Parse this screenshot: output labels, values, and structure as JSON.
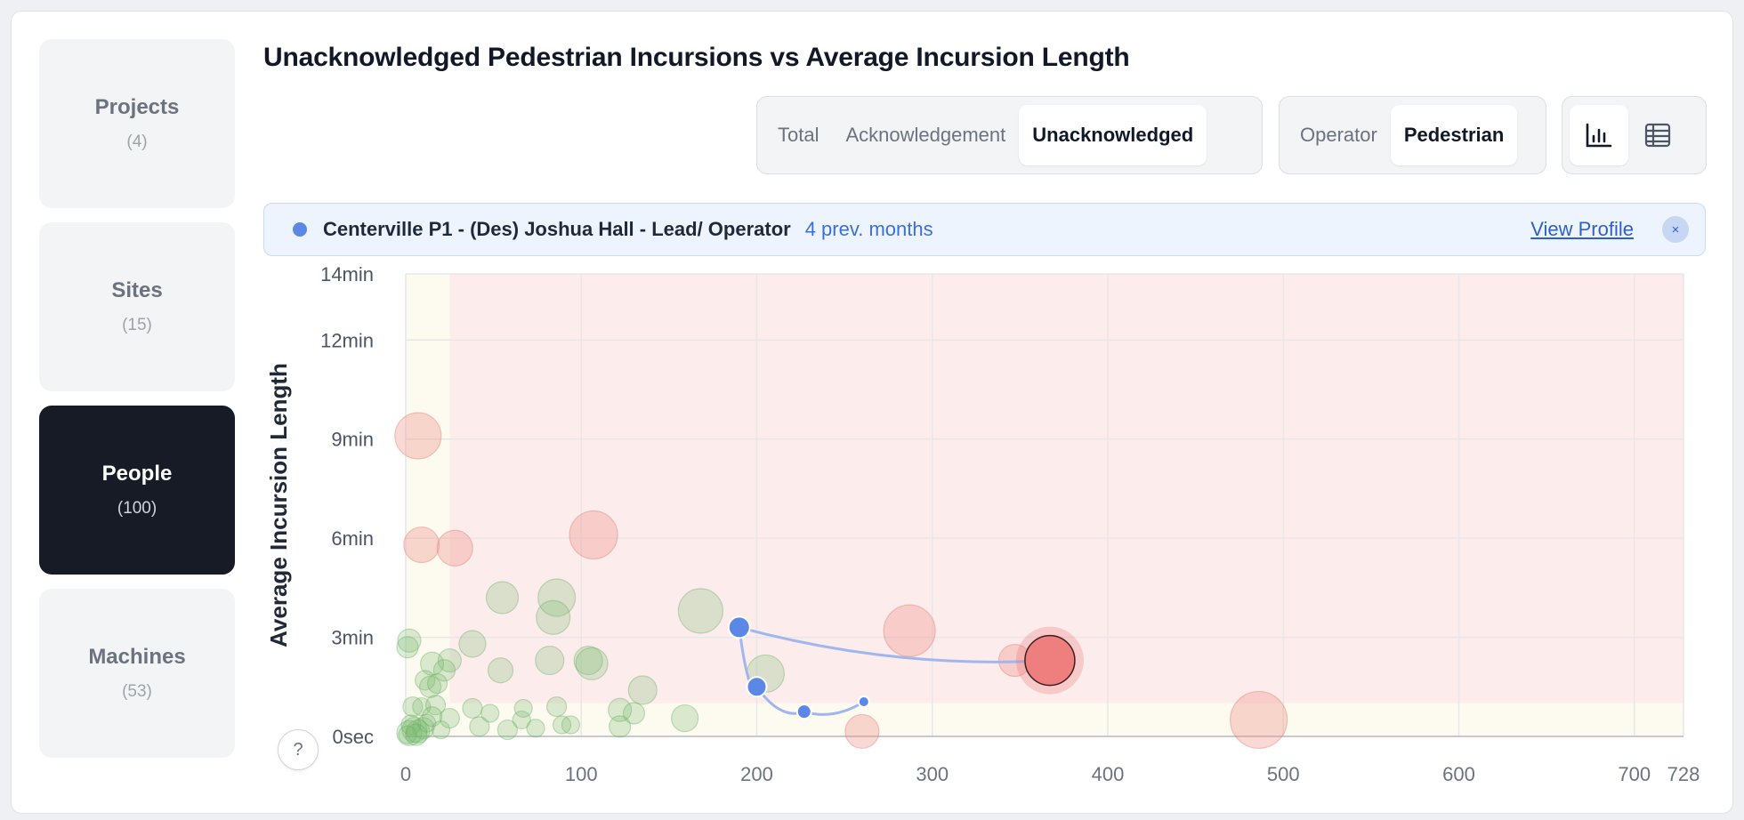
{
  "nav": [
    {
      "label": "Projects",
      "count": "(4)"
    },
    {
      "label": "Sites",
      "count": "(15)"
    },
    {
      "label": "People",
      "count": "(100)"
    },
    {
      "label": "Machines",
      "count": "(53)"
    }
  ],
  "nav_active": 2,
  "title": "Unacknowledged Pedestrian Incursions vs Average Incursion Length",
  "metric_toggle": {
    "options": [
      "Total",
      "Acknowledgement",
      "Unacknowledged"
    ],
    "selected": "Unacknowledged"
  },
  "role_toggle": {
    "options": [
      "Operator",
      "Pedestrian"
    ],
    "selected": "Pedestrian"
  },
  "view_toggle": {
    "options": [
      "bar-chart-icon",
      "table-icon"
    ],
    "selected": "bar-chart-icon"
  },
  "selection": {
    "name": "Centerville P1 - (Des) Joshua Hall - Lead/ Operator",
    "period": "4 prev. months",
    "link": "View Profile",
    "close": "×"
  },
  "help": "?",
  "colors": {
    "accent": "#5b87e6",
    "danger": "#e98080",
    "good": "#86c57f",
    "dark": "#161b26"
  },
  "chart_data": {
    "type": "scatter",
    "ylabel": "Average Incursion Length",
    "xlim": [
      0,
      728
    ],
    "ylim": [
      0,
      14
    ],
    "x_ticks": [
      0,
      100,
      200,
      300,
      400,
      500,
      600,
      700,
      728
    ],
    "y_ticks": [
      {
        "value": 0,
        "label": "0sec"
      },
      {
        "value": 3,
        "label": "3min"
      },
      {
        "value": 6,
        "label": "6min"
      },
      {
        "value": 9,
        "label": "9min"
      },
      {
        "value": 12,
        "label": "12min"
      },
      {
        "value": 14,
        "label": "14min"
      }
    ],
    "zones": {
      "x_threshold": 25,
      "y_threshold": 1
    },
    "points": [
      {
        "x": 7,
        "y": 9.1,
        "r": 26,
        "group": "bad"
      },
      {
        "x": 9,
        "y": 5.8,
        "r": 20,
        "group": "bad"
      },
      {
        "x": 28,
        "y": 5.7,
        "r": 20,
        "group": "bad"
      },
      {
        "x": 107,
        "y": 6.1,
        "r": 27,
        "group": "bad"
      },
      {
        "x": 287,
        "y": 3.2,
        "r": 29,
        "group": "bad"
      },
      {
        "x": 260,
        "y": 0.15,
        "r": 19,
        "group": "bad"
      },
      {
        "x": 486,
        "y": 0.5,
        "r": 32,
        "group": "bad"
      },
      {
        "x": 347,
        "y": 2.3,
        "r": 18,
        "group": "bad"
      },
      {
        "x": 168,
        "y": 3.8,
        "r": 25,
        "group": "good"
      },
      {
        "x": 55,
        "y": 4.2,
        "r": 18,
        "group": "good"
      },
      {
        "x": 86,
        "y": 4.2,
        "r": 21,
        "group": "good"
      },
      {
        "x": 84,
        "y": 3.6,
        "r": 19,
        "group": "good"
      },
      {
        "x": 2,
        "y": 2.9,
        "r": 13,
        "group": "good"
      },
      {
        "x": 1,
        "y": 2.7,
        "r": 12,
        "group": "good"
      },
      {
        "x": 38,
        "y": 2.8,
        "r": 15,
        "group": "good"
      },
      {
        "x": 82,
        "y": 2.3,
        "r": 16,
        "group": "good"
      },
      {
        "x": 104,
        "y": 2.3,
        "r": 16,
        "group": "good"
      },
      {
        "x": 106,
        "y": 2.2,
        "r": 18,
        "group": "good"
      },
      {
        "x": 54,
        "y": 2.0,
        "r": 14,
        "group": "good"
      },
      {
        "x": 25,
        "y": 2.3,
        "r": 13,
        "group": "good"
      },
      {
        "x": 15,
        "y": 2.2,
        "r": 13,
        "group": "good"
      },
      {
        "x": 22,
        "y": 2.0,
        "r": 12,
        "group": "good"
      },
      {
        "x": 11,
        "y": 1.7,
        "r": 11,
        "group": "good"
      },
      {
        "x": 14,
        "y": 1.5,
        "r": 12,
        "group": "good"
      },
      {
        "x": 18,
        "y": 1.6,
        "r": 11,
        "group": "good"
      },
      {
        "x": 135,
        "y": 1.4,
        "r": 16,
        "group": "good"
      },
      {
        "x": 205,
        "y": 1.9,
        "r": 21,
        "group": "good"
      },
      {
        "x": 4,
        "y": 0.9,
        "r": 11,
        "group": "good"
      },
      {
        "x": 9,
        "y": 0.9,
        "r": 10,
        "group": "good"
      },
      {
        "x": 17,
        "y": 0.95,
        "r": 11,
        "group": "good"
      },
      {
        "x": 25,
        "y": 0.55,
        "r": 11,
        "group": "good"
      },
      {
        "x": 38,
        "y": 0.85,
        "r": 11,
        "group": "good"
      },
      {
        "x": 42,
        "y": 0.3,
        "r": 11,
        "group": "good"
      },
      {
        "x": 48,
        "y": 0.7,
        "r": 10,
        "group": "good"
      },
      {
        "x": 58,
        "y": 0.2,
        "r": 11,
        "group": "good"
      },
      {
        "x": 66,
        "y": 0.5,
        "r": 10,
        "group": "good"
      },
      {
        "x": 67,
        "y": 0.85,
        "r": 10,
        "group": "good"
      },
      {
        "x": 74,
        "y": 0.25,
        "r": 10,
        "group": "good"
      },
      {
        "x": 86,
        "y": 0.9,
        "r": 11,
        "group": "good"
      },
      {
        "x": 89,
        "y": 0.35,
        "r": 10,
        "group": "good"
      },
      {
        "x": 94,
        "y": 0.35,
        "r": 10,
        "group": "good"
      },
      {
        "x": 122,
        "y": 0.8,
        "r": 13,
        "group": "good"
      },
      {
        "x": 122,
        "y": 0.3,
        "r": 12,
        "group": "good"
      },
      {
        "x": 130,
        "y": 0.7,
        "r": 12,
        "group": "good"
      },
      {
        "x": 159,
        "y": 0.55,
        "r": 15,
        "group": "good"
      },
      {
        "x": 2,
        "y": 0.1,
        "r": 14,
        "group": "good"
      },
      {
        "x": 5,
        "y": 0.2,
        "r": 14,
        "group": "good"
      },
      {
        "x": 7,
        "y": 0.15,
        "r": 13,
        "group": "good"
      },
      {
        "x": 10,
        "y": 0.25,
        "r": 12,
        "group": "good"
      },
      {
        "x": 3,
        "y": 0.35,
        "r": 11,
        "group": "good"
      },
      {
        "x": 12,
        "y": 0.4,
        "r": 10,
        "group": "good"
      },
      {
        "x": 15,
        "y": 0.6,
        "r": 11,
        "group": "good"
      },
      {
        "x": 20,
        "y": 0.2,
        "r": 10,
        "group": "good"
      },
      {
        "x": 1,
        "y": 0.05,
        "r": 10,
        "group": "good"
      },
      {
        "x": 6,
        "y": 0.05,
        "r": 12,
        "group": "good"
      }
    ],
    "trail": [
      {
        "x": 261,
        "y": 1.05,
        "r": 6
      },
      {
        "x": 227,
        "y": 0.75,
        "r": 8
      },
      {
        "x": 200,
        "y": 1.5,
        "r": 11
      },
      {
        "x": 190,
        "y": 3.3,
        "r": 12
      }
    ],
    "selected_point": {
      "x": 367,
      "y": 2.3,
      "r": 28
    }
  }
}
